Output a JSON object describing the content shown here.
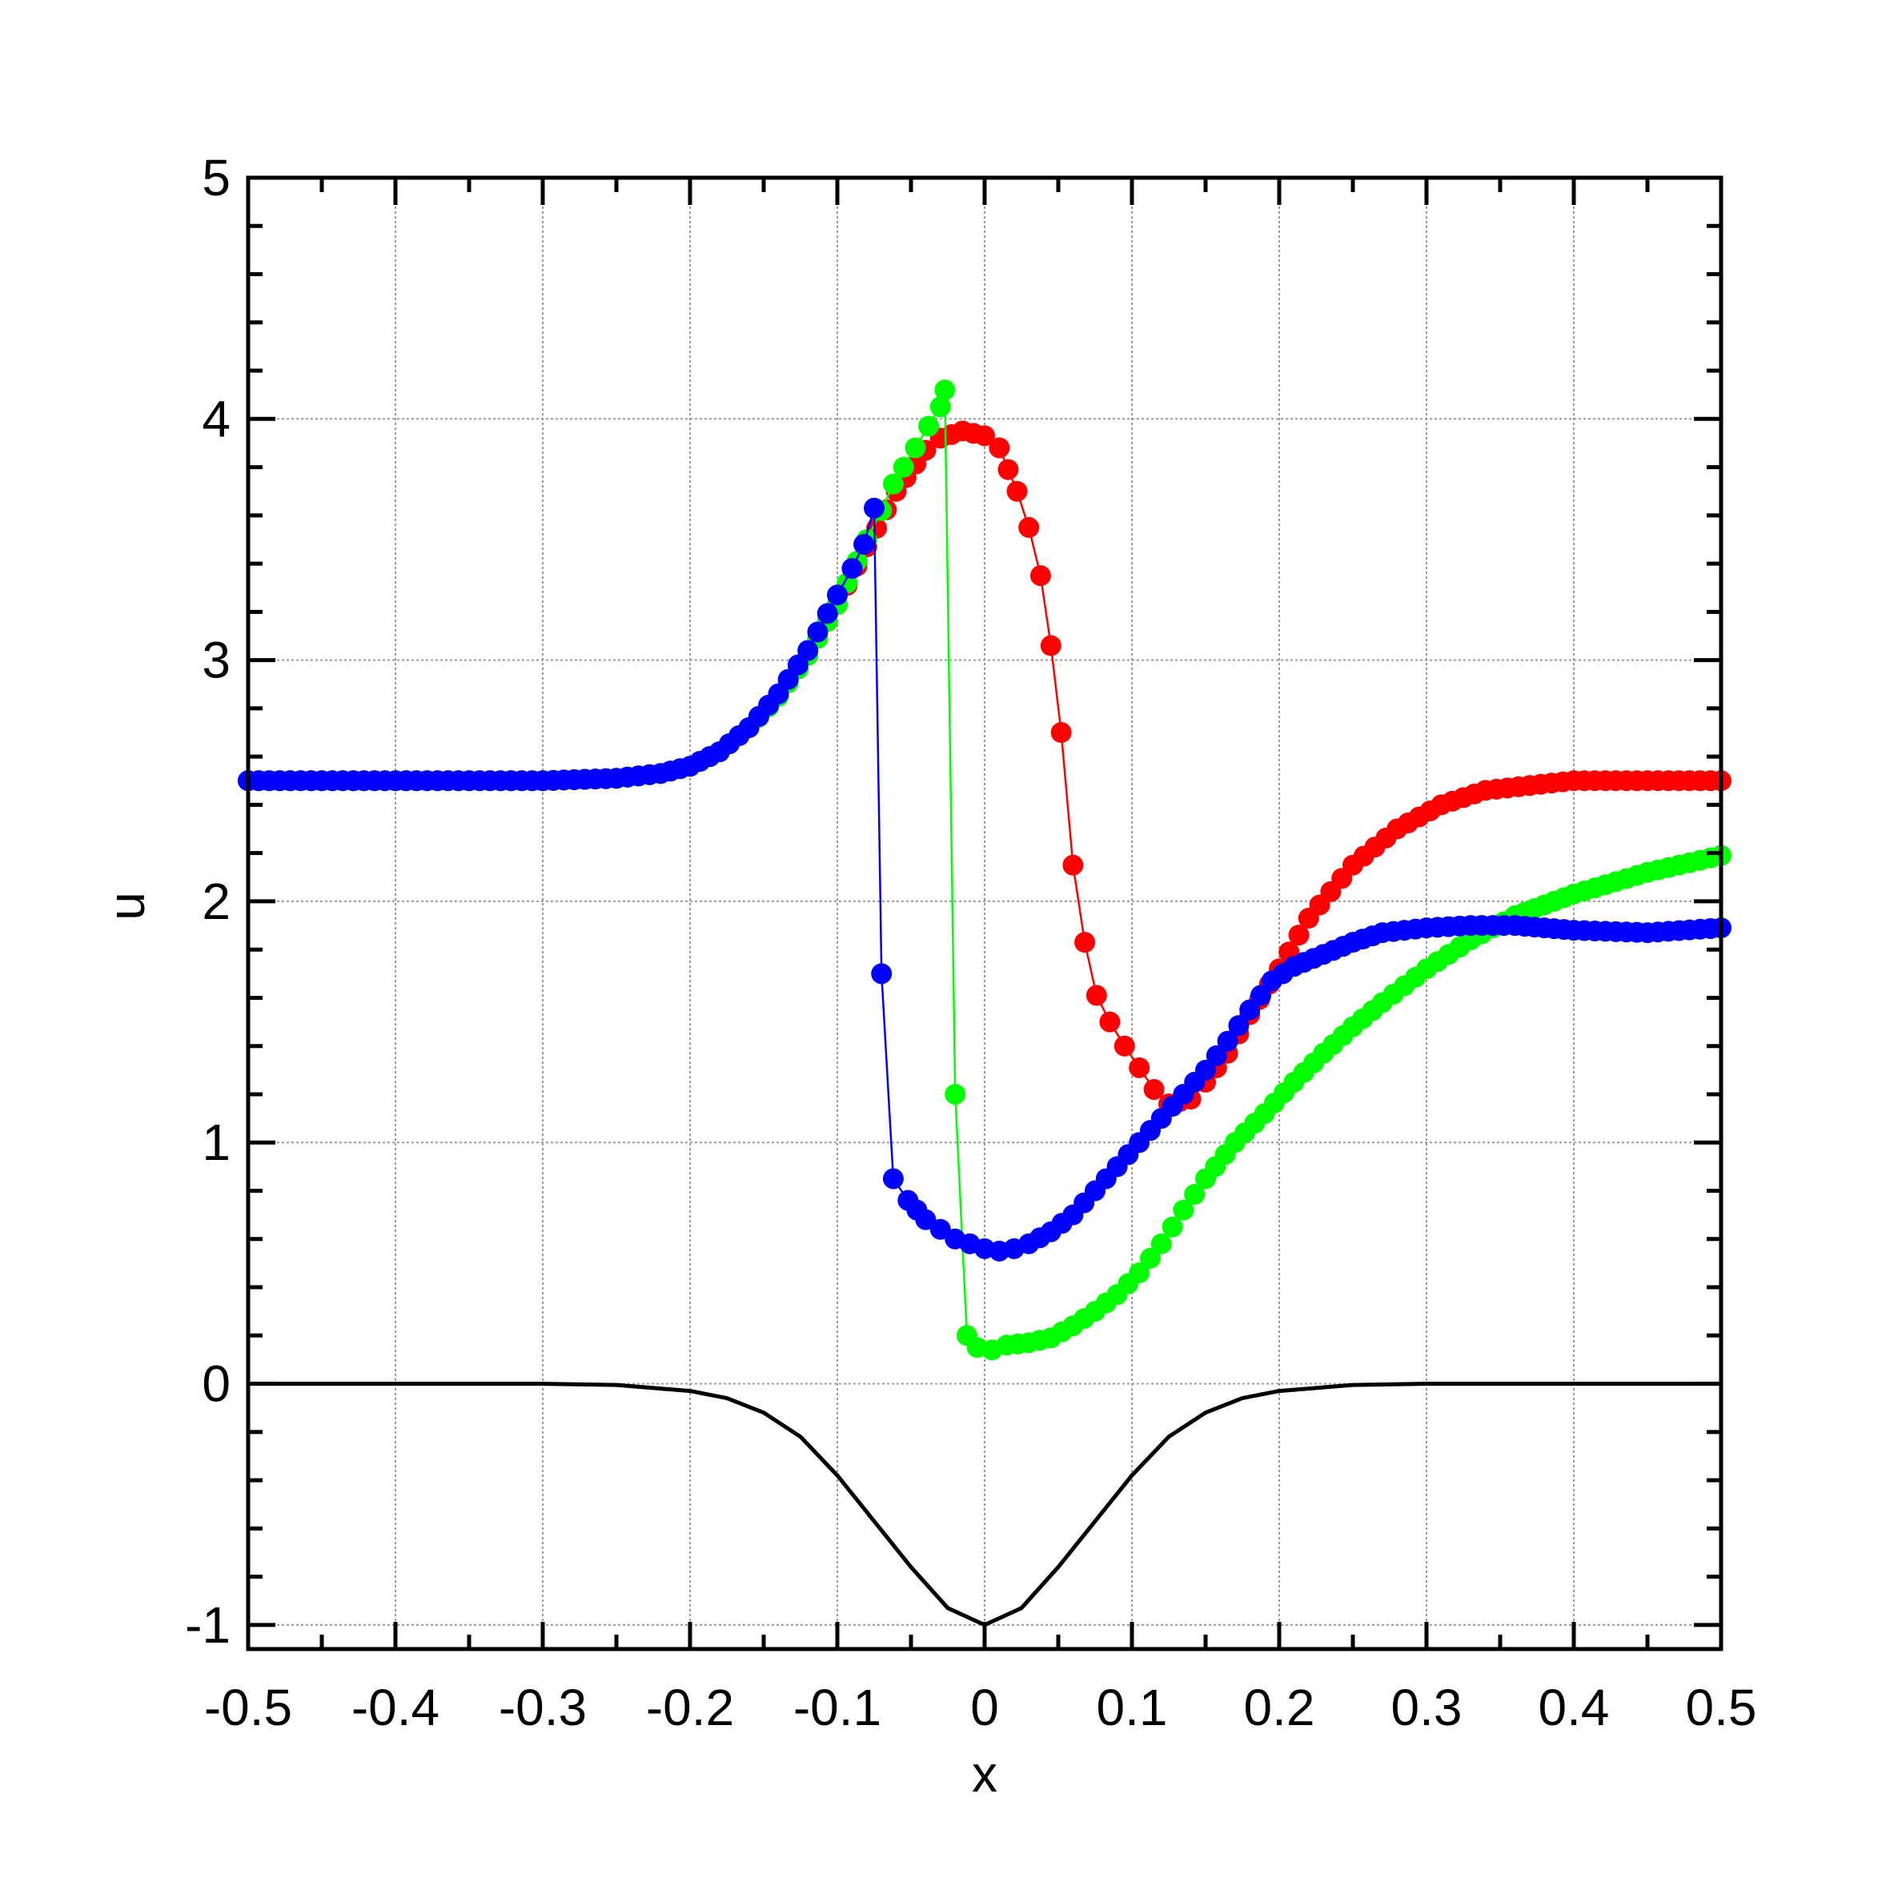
{
  "chart_data": {
    "type": "scatter",
    "title": "",
    "xlabel": "x",
    "ylabel": "u",
    "xlim": [
      -0.5,
      0.5
    ],
    "ylim": [
      -1.1,
      5
    ],
    "xticks": [
      -0.5,
      -0.4,
      -0.3,
      -0.2,
      -0.1,
      0,
      0.1,
      0.2,
      0.3,
      0.4,
      0.5
    ],
    "xtick_labels": [
      "-0.5",
      "-0.4",
      "-0.3",
      "-0.2",
      "-0.1",
      "0",
      "0.1",
      "0.2",
      "0.3",
      "0.4",
      "0.5"
    ],
    "yticks": [
      -1,
      0,
      1,
      2,
      3,
      4,
      5
    ],
    "ytick_labels": [
      "-1",
      "0",
      "1",
      "2",
      "3",
      "4",
      "5"
    ],
    "grid": true,
    "legend": "none",
    "series": [
      {
        "color": "#000000",
        "style": "line",
        "points": [
          [
            -0.5,
            0.0
          ],
          [
            -0.3,
            0.0
          ],
          [
            -0.25,
            -0.005
          ],
          [
            -0.2,
            -0.03
          ],
          [
            -0.175,
            -0.06
          ],
          [
            -0.15,
            -0.12
          ],
          [
            -0.125,
            -0.22
          ],
          [
            -0.1,
            -0.38
          ],
          [
            -0.075,
            -0.57
          ],
          [
            -0.05,
            -0.76
          ],
          [
            -0.025,
            -0.93
          ],
          [
            0.0,
            -1.0
          ],
          [
            0.025,
            -0.93
          ],
          [
            0.05,
            -0.76
          ],
          [
            0.075,
            -0.57
          ],
          [
            0.1,
            -0.38
          ],
          [
            0.125,
            -0.22
          ],
          [
            0.15,
            -0.12
          ],
          [
            0.175,
            -0.06
          ],
          [
            0.2,
            -0.03
          ],
          [
            0.25,
            -0.005
          ],
          [
            0.3,
            0.0
          ],
          [
            0.5,
            0.0
          ]
        ]
      },
      {
        "color": "#ff0000",
        "style": "line+markers",
        "points": [
          [
            -0.5,
            2.5
          ],
          [
            -0.3,
            2.5
          ],
          [
            -0.25,
            2.51
          ],
          [
            -0.22,
            2.53
          ],
          [
            -0.2,
            2.56
          ],
          [
            -0.18,
            2.62
          ],
          [
            -0.16,
            2.72
          ],
          [
            -0.14,
            2.85
          ],
          [
            -0.12,
            3.02
          ],
          [
            -0.1,
            3.23
          ],
          [
            -0.08,
            3.47
          ],
          [
            -0.06,
            3.7
          ],
          [
            -0.04,
            3.87
          ],
          [
            -0.03,
            3.92
          ],
          [
            -0.015,
            3.95
          ],
          [
            0.0,
            3.93
          ],
          [
            0.01,
            3.88
          ],
          [
            0.022,
            3.7
          ],
          [
            0.03,
            3.55
          ],
          [
            0.038,
            3.35
          ],
          [
            0.045,
            3.06
          ],
          [
            0.052,
            2.7
          ],
          [
            0.06,
            2.15
          ],
          [
            0.068,
            1.83
          ],
          [
            0.076,
            1.61
          ],
          [
            0.085,
            1.5
          ],
          [
            0.095,
            1.4
          ],
          [
            0.105,
            1.31
          ],
          [
            0.115,
            1.22
          ],
          [
            0.125,
            1.16
          ],
          [
            0.14,
            1.18
          ],
          [
            0.15,
            1.25
          ],
          [
            0.165,
            1.37
          ],
          [
            0.18,
            1.53
          ],
          [
            0.2,
            1.72
          ],
          [
            0.22,
            1.93
          ],
          [
            0.25,
            2.15
          ],
          [
            0.28,
            2.3
          ],
          [
            0.31,
            2.4
          ],
          [
            0.34,
            2.46
          ],
          [
            0.37,
            2.48
          ],
          [
            0.4,
            2.5
          ],
          [
            0.5,
            2.5
          ]
        ]
      },
      {
        "color": "#00ff00",
        "style": "line+markers",
        "points": [
          [
            -0.5,
            2.5
          ],
          [
            -0.3,
            2.5
          ],
          [
            -0.25,
            2.51
          ],
          [
            -0.22,
            2.53
          ],
          [
            -0.2,
            2.56
          ],
          [
            -0.18,
            2.62
          ],
          [
            -0.16,
            2.72
          ],
          [
            -0.14,
            2.85
          ],
          [
            -0.12,
            3.02
          ],
          [
            -0.1,
            3.23
          ],
          [
            -0.08,
            3.5
          ],
          [
            -0.07,
            3.62
          ],
          [
            -0.062,
            3.73
          ],
          [
            -0.055,
            3.8
          ],
          [
            -0.047,
            3.88
          ],
          [
            -0.038,
            3.97
          ],
          [
            -0.03,
            4.05
          ],
          [
            -0.027,
            4.12
          ],
          [
            -0.02,
            1.2
          ],
          [
            -0.012,
            0.2
          ],
          [
            -0.005,
            0.15
          ],
          [
            0.005,
            0.14
          ],
          [
            0.015,
            0.16
          ],
          [
            0.03,
            0.17
          ],
          [
            0.045,
            0.19
          ],
          [
            0.06,
            0.24
          ],
          [
            0.075,
            0.3
          ],
          [
            0.09,
            0.37
          ],
          [
            0.105,
            0.46
          ],
          [
            0.12,
            0.58
          ],
          [
            0.135,
            0.72
          ],
          [
            0.15,
            0.85
          ],
          [
            0.17,
            1.0
          ],
          [
            0.19,
            1.12
          ],
          [
            0.21,
            1.25
          ],
          [
            0.23,
            1.37
          ],
          [
            0.25,
            1.48
          ],
          [
            0.27,
            1.58
          ],
          [
            0.3,
            1.72
          ],
          [
            0.33,
            1.84
          ],
          [
            0.36,
            1.94
          ],
          [
            0.4,
            2.03
          ],
          [
            0.45,
            2.12
          ],
          [
            0.5,
            2.19
          ]
        ]
      },
      {
        "color": "#0000ff",
        "style": "line+markers",
        "points": [
          [
            -0.5,
            2.5
          ],
          [
            -0.3,
            2.5
          ],
          [
            -0.25,
            2.51
          ],
          [
            -0.22,
            2.53
          ],
          [
            -0.2,
            2.56
          ],
          [
            -0.18,
            2.62
          ],
          [
            -0.16,
            2.72
          ],
          [
            -0.14,
            2.86
          ],
          [
            -0.12,
            3.04
          ],
          [
            -0.1,
            3.27
          ],
          [
            -0.09,
            3.38
          ],
          [
            -0.082,
            3.48
          ],
          [
            -0.075,
            3.63
          ],
          [
            -0.07,
            1.7
          ],
          [
            -0.062,
            0.85
          ],
          [
            -0.052,
            0.76
          ],
          [
            -0.04,
            0.68
          ],
          [
            -0.03,
            0.64
          ],
          [
            -0.02,
            0.6
          ],
          [
            -0.01,
            0.58
          ],
          [
            0.0,
            0.56
          ],
          [
            0.01,
            0.55
          ],
          [
            0.02,
            0.56
          ],
          [
            0.03,
            0.58
          ],
          [
            0.045,
            0.63
          ],
          [
            0.06,
            0.7
          ],
          [
            0.075,
            0.8
          ],
          [
            0.09,
            0.9
          ],
          [
            0.105,
            1.0
          ],
          [
            0.12,
            1.1
          ],
          [
            0.135,
            1.2
          ],
          [
            0.15,
            1.3
          ],
          [
            0.165,
            1.42
          ],
          [
            0.18,
            1.55
          ],
          [
            0.195,
            1.67
          ],
          [
            0.21,
            1.73
          ],
          [
            0.23,
            1.78
          ],
          [
            0.25,
            1.83
          ],
          [
            0.27,
            1.87
          ],
          [
            0.3,
            1.89
          ],
          [
            0.33,
            1.9
          ],
          [
            0.36,
            1.9
          ],
          [
            0.4,
            1.88
          ],
          [
            0.45,
            1.87
          ],
          [
            0.5,
            1.89
          ]
        ]
      }
    ]
  }
}
